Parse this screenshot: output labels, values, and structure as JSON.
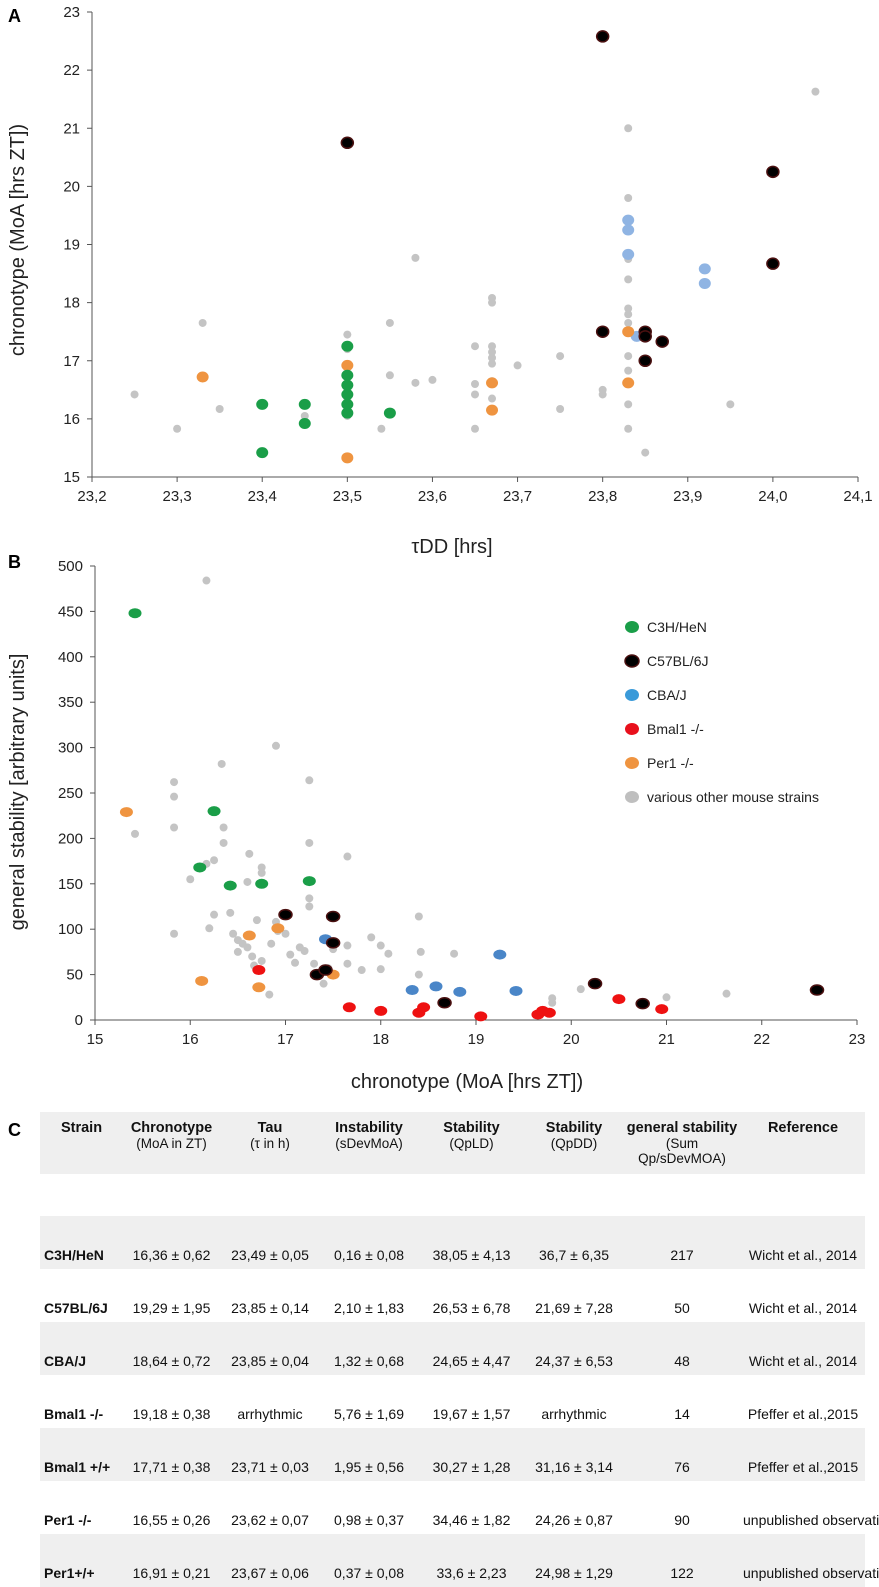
{
  "panelA": {
    "label": "A",
    "xlabel": "τDD [hrs]",
    "ylabel": "chronotype (MoA [hrs ZT])",
    "xticks": [
      "23,2",
      "23,3",
      "23,4",
      "23,5",
      "23,6",
      "23,7",
      "23,8",
      "23,9",
      "24,0",
      "24,1"
    ],
    "yticks": [
      "15",
      "16",
      "17",
      "18",
      "19",
      "20",
      "21",
      "22",
      "23"
    ]
  },
  "panelB": {
    "label": "B",
    "xlabel": "chronotype (MoA [hrs ZT])",
    "ylabel": "general stability [arbitrary units]",
    "xticks": [
      "15",
      "16",
      "17",
      "18",
      "19",
      "20",
      "21",
      "22",
      "23"
    ],
    "yticks": [
      "0",
      "50",
      "100",
      "150",
      "200",
      "250",
      "300",
      "350",
      "400",
      "450",
      "500"
    ],
    "legend": [
      {
        "label": "C3H/HeN",
        "color": "#1a9e48"
      },
      {
        "label": "C57BL/6J",
        "color": "#000000"
      },
      {
        "label": "CBA/J",
        "color": "#3a9ad9"
      },
      {
        "label": "Bmal1 -/-",
        "color": "#e8101c"
      },
      {
        "label": "Per1 -/-",
        "color": "#ef9440"
      },
      {
        "label": "various other mouse strains",
        "color": "#bfbfbf"
      }
    ]
  },
  "colors": {
    "c3h": "#1a9e48",
    "c57": "#000000",
    "c57_edge": "#4a1010",
    "cba_a": "#8fb4e3",
    "cba_b": "#4a86c8",
    "bmal": "#ee1111",
    "per1": "#ef9440",
    "other": "#c4c4c4"
  },
  "chart_data": [
    {
      "type": "scatter",
      "title": "",
      "xlabel": "τDD [hrs]",
      "ylabel": "chronotype (MoA [hrs ZT])",
      "xlim": [
        23.2,
        24.1
      ],
      "ylim": [
        15,
        23
      ],
      "grid": false,
      "series": [
        {
          "name": "various other mouse strains",
          "color": "other",
          "points": [
            [
              23.25,
              16.42
            ],
            [
              23.3,
              15.83
            ],
            [
              23.33,
              17.65
            ],
            [
              23.35,
              16.17
            ],
            [
              23.45,
              16.05
            ],
            [
              23.5,
              17.45
            ],
            [
              23.5,
              17.2
            ],
            [
              23.5,
              16.9
            ],
            [
              23.5,
              16.62
            ],
            [
              23.5,
              16.5
            ],
            [
              23.5,
              16.35
            ],
            [
              23.5,
              16.25
            ],
            [
              23.5,
              16.05
            ],
            [
              23.54,
              15.83
            ],
            [
              23.55,
              17.65
            ],
            [
              23.55,
              16.75
            ],
            [
              23.58,
              18.77
            ],
            [
              23.58,
              16.62
            ],
            [
              23.6,
              16.67
            ],
            [
              23.65,
              17.25
            ],
            [
              23.65,
              16.6
            ],
            [
              23.65,
              16.42
            ],
            [
              23.65,
              15.83
            ],
            [
              23.67,
              18.08
            ],
            [
              23.67,
              18.0
            ],
            [
              23.67,
              17.25
            ],
            [
              23.67,
              17.15
            ],
            [
              23.67,
              17.05
            ],
            [
              23.67,
              16.95
            ],
            [
              23.67,
              16.65
            ],
            [
              23.67,
              16.35
            ],
            [
              23.67,
              16.15
            ],
            [
              23.7,
              16.92
            ],
            [
              23.75,
              17.08
            ],
            [
              23.75,
              16.17
            ],
            [
              23.8,
              16.5
            ],
            [
              23.8,
              16.42
            ],
            [
              23.83,
              21.0
            ],
            [
              23.83,
              19.8
            ],
            [
              23.83,
              18.75
            ],
            [
              23.83,
              18.4
            ],
            [
              23.83,
              17.9
            ],
            [
              23.83,
              17.8
            ],
            [
              23.83,
              17.65
            ],
            [
              23.83,
              17.08
            ],
            [
              23.83,
              16.83
            ],
            [
              23.83,
              16.6
            ],
            [
              23.83,
              16.25
            ],
            [
              23.83,
              15.83
            ],
            [
              23.85,
              15.42
            ],
            [
              23.95,
              16.25
            ],
            [
              24.05,
              21.63
            ]
          ]
        },
        {
          "name": "CBA/J",
          "color": "cba_a",
          "points": [
            [
              23.83,
              19.42
            ],
            [
              23.83,
              19.25
            ],
            [
              23.83,
              18.83
            ],
            [
              23.84,
              17.42
            ],
            [
              23.92,
              18.58
            ],
            [
              23.92,
              18.33
            ]
          ]
        },
        {
          "name": "Per1 -/-",
          "color": "per1",
          "points": [
            [
              23.33,
              16.72
            ],
            [
              23.5,
              16.92
            ],
            [
              23.5,
              15.33
            ],
            [
              23.67,
              16.62
            ],
            [
              23.67,
              16.15
            ],
            [
              23.83,
              17.5
            ],
            [
              23.83,
              16.62
            ]
          ]
        },
        {
          "name": "C3H/HeN",
          "color": "c3h",
          "points": [
            [
              23.4,
              16.25
            ],
            [
              23.4,
              15.42
            ],
            [
              23.45,
              16.25
            ],
            [
              23.45,
              15.92
            ],
            [
              23.5,
              17.25
            ],
            [
              23.5,
              16.75
            ],
            [
              23.5,
              16.58
            ],
            [
              23.5,
              16.42
            ],
            [
              23.5,
              16.25
            ],
            [
              23.5,
              16.1
            ],
            [
              23.55,
              16.1
            ]
          ]
        },
        {
          "name": "C57BL/6J",
          "color": "c57",
          "points": [
            [
              23.5,
              20.75
            ],
            [
              23.8,
              22.58
            ],
            [
              23.8,
              17.5
            ],
            [
              23.85,
              17.5
            ],
            [
              23.85,
              17.42
            ],
            [
              23.85,
              17.0
            ],
            [
              23.87,
              17.33
            ],
            [
              24.0,
              20.25
            ],
            [
              24.0,
              18.67
            ]
          ]
        }
      ]
    },
    {
      "type": "scatter",
      "title": "",
      "xlabel": "chronotype (MoA [hrs ZT])",
      "ylabel": "general stability [arbitrary units]",
      "xlim": [
        15,
        23
      ],
      "ylim": [
        0,
        500
      ],
      "grid": false,
      "legend_position": "right",
      "series": [
        {
          "name": "various other mouse strains",
          "color": "other",
          "points": [
            [
              15.42,
              205
            ],
            [
              15.83,
              262
            ],
            [
              15.83,
              246
            ],
            [
              15.83,
              212
            ],
            [
              15.83,
              95
            ],
            [
              16.0,
              155
            ],
            [
              16.17,
              484
            ],
            [
              16.17,
              172
            ],
            [
              16.2,
              101
            ],
            [
              16.25,
              176
            ],
            [
              16.25,
              116
            ],
            [
              16.33,
              282
            ],
            [
              16.35,
              212
            ],
            [
              16.35,
              195
            ],
            [
              16.42,
              118
            ],
            [
              16.45,
              95
            ],
            [
              16.5,
              88
            ],
            [
              16.5,
              75
            ],
            [
              16.55,
              84
            ],
            [
              16.6,
              152
            ],
            [
              16.6,
              80
            ],
            [
              16.62,
              183
            ],
            [
              16.65,
              70
            ],
            [
              16.67,
              60
            ],
            [
              16.7,
              110
            ],
            [
              16.75,
              168
            ],
            [
              16.75,
              162
            ],
            [
              16.75,
              65
            ],
            [
              16.83,
              28
            ],
            [
              16.85,
              84
            ],
            [
              16.9,
              302
            ],
            [
              16.9,
              108
            ],
            [
              16.92,
              98
            ],
            [
              17.0,
              95
            ],
            [
              17.05,
              72
            ],
            [
              17.1,
              63
            ],
            [
              17.15,
              80
            ],
            [
              17.2,
              76
            ],
            [
              17.25,
              264
            ],
            [
              17.25,
              195
            ],
            [
              17.25,
              134
            ],
            [
              17.25,
              125
            ],
            [
              17.3,
              62
            ],
            [
              17.4,
              40
            ],
            [
              17.45,
              57
            ],
            [
              17.5,
              78
            ],
            [
              17.65,
              180
            ],
            [
              17.65,
              82
            ],
            [
              17.65,
              62
            ],
            [
              17.8,
              55
            ],
            [
              17.9,
              91
            ],
            [
              18.0,
              56
            ],
            [
              18.0,
              82
            ],
            [
              18.08,
              73
            ],
            [
              18.4,
              114
            ],
            [
              18.42,
              75
            ],
            [
              18.4,
              50
            ],
            [
              18.77,
              73
            ],
            [
              19.8,
              24
            ],
            [
              19.8,
              19
            ],
            [
              20.1,
              34
            ],
            [
              21.0,
              25
            ],
            [
              21.63,
              29
            ]
          ]
        },
        {
          "name": "CBA/J",
          "color": "cba_b",
          "points": [
            [
              17.42,
              89
            ],
            [
              18.33,
              33
            ],
            [
              18.58,
              37
            ],
            [
              18.83,
              31
            ],
            [
              19.25,
              72
            ],
            [
              19.42,
              32
            ]
          ]
        },
        {
          "name": "Per1 -/-",
          "color": "per1",
          "points": [
            [
              15.33,
              229
            ],
            [
              16.12,
              43
            ],
            [
              16.62,
              93
            ],
            [
              16.72,
              36
            ],
            [
              16.92,
              101
            ],
            [
              17.5,
              50
            ]
          ]
        },
        {
          "name": "C3H/HeN",
          "color": "c3h",
          "points": [
            [
              15.42,
              448
            ],
            [
              16.1,
              168
            ],
            [
              16.25,
              230
            ],
            [
              16.42,
              148
            ],
            [
              16.75,
              150
            ],
            [
              17.25,
              153
            ]
          ]
        },
        {
          "name": "Bmal1 -/-",
          "color": "bmal",
          "points": [
            [
              16.72,
              55
            ],
            [
              17.67,
              14
            ],
            [
              18.0,
              10
            ],
            [
              18.4,
              8
            ],
            [
              18.45,
              14
            ],
            [
              19.05,
              4
            ],
            [
              19.65,
              6
            ],
            [
              19.7,
              10
            ],
            [
              19.77,
              8
            ],
            [
              20.5,
              23
            ],
            [
              20.95,
              12
            ]
          ]
        },
        {
          "name": "C57BL/6J",
          "color": "c57",
          "points": [
            [
              17.0,
              116
            ],
            [
              17.33,
              50
            ],
            [
              17.42,
              55
            ],
            [
              17.5,
              114
            ],
            [
              17.5,
              85
            ],
            [
              18.67,
              19
            ],
            [
              20.25,
              40
            ],
            [
              20.75,
              18
            ],
            [
              22.58,
              33
            ]
          ]
        }
      ]
    },
    {
      "type": "table",
      "label": "C",
      "headers": [
        {
          "title": "Strain",
          "sub": ""
        },
        {
          "title": "Chronotype",
          "sub": "(MoA in ZT)"
        },
        {
          "title": "Tau",
          "sub": "(τ in h)"
        },
        {
          "title": "Instability",
          "sub": "(sDevMoA)"
        },
        {
          "title": "Stability",
          "sub": "(QpLD)"
        },
        {
          "title": "Stability",
          "sub": "(QpDD)"
        },
        {
          "title": "general stability",
          "sub": "(Sum Qp/sDevMOA)"
        },
        {
          "title": "Reference",
          "sub": ""
        }
      ],
      "rows": [
        [
          "C3H/HeN",
          "16,36 ± 0,62",
          "23,49 ± 0,05",
          "0,16 ± 0,08",
          "38,05 ± 4,13",
          "36,7 ± 6,35",
          "217",
          "Wicht et al., 2014"
        ],
        [
          "C57BL/6J",
          "19,29 ± 1,95",
          "23,85 ± 0,14",
          "2,10 ± 1,83",
          "26,53 ± 6,78",
          "21,69 ± 7,28",
          "50",
          "Wicht et al., 2014"
        ],
        [
          "CBA/J",
          "18,64 ± 0,72",
          "23,85 ± 0,04",
          "1,32 ± 0,68",
          "24,65 ± 4,47",
          "24,37 ± 6,53",
          "48",
          "Wicht et al., 2014"
        ],
        [
          "Bmal1 -/-",
          "19,18 ± 0,38",
          "arrhythmic",
          "5,76 ± 1,69",
          "19,67 ± 1,57",
          "arrhythmic",
          "14",
          "Pfeffer et al.,2015"
        ],
        [
          "Bmal1 +/+",
          "17,71 ± 0,38",
          "23,71 ± 0,03",
          "1,95 ± 0,56",
          "30,27 ± 1,28",
          "31,16 ± 3,14",
          "76",
          "Pfeffer et al.,2015"
        ],
        [
          "Per1 -/-",
          "16,55 ± 0,26",
          "23,62 ± 0,07",
          "0,98 ± 0,37",
          "34,46 ± 1,82",
          "24,26 ± 0,87",
          "90",
          "unpublished observation"
        ],
        [
          "Per1+/+",
          "16,91 ± 0,21",
          "23,67 ± 0,06",
          "0,37 ± 0,08",
          "33,6 ± 2,23",
          "24,98 ± 1,29",
          "122",
          "unpublished observation"
        ]
      ]
    }
  ]
}
